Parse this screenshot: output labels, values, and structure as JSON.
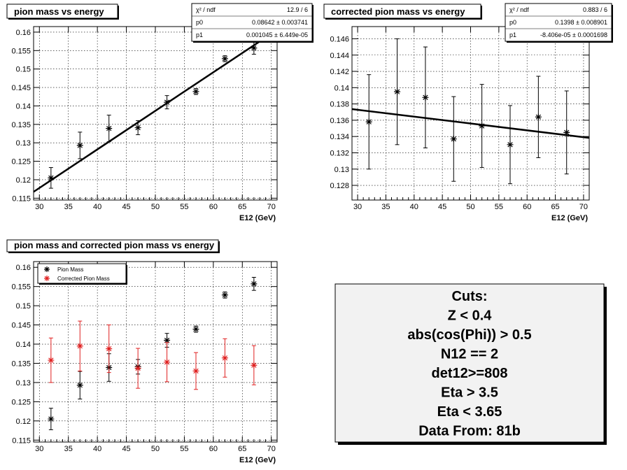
{
  "chart_data": [
    {
      "type": "scatter",
      "title": "pion mass vs energy",
      "xlabel": "E12 (GeV)",
      "xlim": [
        29,
        71
      ],
      "ylim": [
        0.1145,
        0.1615
      ],
      "xticks": [
        30,
        35,
        40,
        45,
        50,
        55,
        60,
        65,
        70
      ],
      "yticks": [
        0.115,
        0.12,
        0.125,
        0.13,
        0.135,
        0.14,
        0.145,
        0.15,
        0.155,
        0.16
      ],
      "series": [
        {
          "color": "#000000",
          "x": [
            32,
            37,
            42,
            47,
            52,
            57,
            62,
            67
          ],
          "y": [
            0.1205,
            0.1293,
            0.1339,
            0.1341,
            0.141,
            0.1439,
            0.1528,
            0.1557
          ],
          "err": [
            0.0028,
            0.0036,
            0.0036,
            0.0019,
            0.0018,
            0.0008,
            0.0008,
            0.0017
          ]
        }
      ],
      "fit": {
        "p0": 0.08642,
        "p1": 0.001045
      },
      "stats": [
        {
          "label": "χ² / ndf",
          "value": "12.9 / 6"
        },
        {
          "label": "p0",
          "value": "0.08642 ± 0.003741"
        },
        {
          "label": "p1",
          "value": "0.001045 ± 6.449e-05"
        }
      ]
    },
    {
      "type": "scatter",
      "title": "corrected pion mass vs energy",
      "xlabel": "E12 (GeV)",
      "xlim": [
        29,
        71
      ],
      "ylim": [
        0.1262,
        0.1475
      ],
      "xticks": [
        30,
        35,
        40,
        45,
        50,
        55,
        60,
        65,
        70
      ],
      "yticks": [
        0.128,
        0.13,
        0.132,
        0.134,
        0.136,
        0.138,
        0.14,
        0.142,
        0.144,
        0.146
      ],
      "series": [
        {
          "color": "#000000",
          "x": [
            32,
            37,
            42,
            47,
            52,
            57,
            62,
            67
          ],
          "y": [
            0.1358,
            0.1395,
            0.1388,
            0.1337,
            0.1353,
            0.133,
            0.1364,
            0.1345
          ],
          "err": [
            0.0058,
            0.0065,
            0.0062,
            0.0052,
            0.0051,
            0.0048,
            0.005,
            0.0051
          ]
        }
      ],
      "fit": {
        "p0": 0.1398,
        "p1": -8.406e-05
      },
      "stats": [
        {
          "label": "χ² / ndf",
          "value": "0.883 / 6"
        },
        {
          "label": "p0",
          "value": "0.1398 ± 0.008901"
        },
        {
          "label": "p1",
          "value": "-8.406e-05 ± 0.0001698"
        }
      ]
    },
    {
      "type": "scatter",
      "title": "pion mass and corrected pion mass vs energy",
      "xlabel": "E12 (GeV)",
      "xlim": [
        29,
        71
      ],
      "ylim": [
        0.1145,
        0.1615
      ],
      "xticks": [
        30,
        35,
        40,
        45,
        50,
        55,
        60,
        65,
        70
      ],
      "yticks": [
        0.115,
        0.12,
        0.125,
        0.13,
        0.135,
        0.14,
        0.145,
        0.15,
        0.155,
        0.16
      ],
      "legend_position": "top-left",
      "series": [
        {
          "name": "Pion Mass",
          "color": "#000000",
          "x": [
            32,
            37,
            42,
            47,
            52,
            57,
            62,
            67
          ],
          "y": [
            0.1205,
            0.1293,
            0.1339,
            0.1341,
            0.141,
            0.1439,
            0.1528,
            0.1557
          ],
          "err": [
            0.0028,
            0.0036,
            0.0036,
            0.0019,
            0.0018,
            0.0008,
            0.0008,
            0.0017
          ]
        },
        {
          "name": "Corrected Pion Mass",
          "color": "#e02020",
          "x": [
            32,
            37,
            42,
            47,
            52,
            57,
            62,
            67
          ],
          "y": [
            0.1358,
            0.1395,
            0.1388,
            0.1337,
            0.1353,
            0.133,
            0.1364,
            0.1345
          ],
          "err": [
            0.0058,
            0.0065,
            0.0062,
            0.0052,
            0.0051,
            0.0048,
            0.005,
            0.0051
          ]
        }
      ]
    }
  ],
  "cuts_panel": {
    "lines": [
      "Cuts:",
      "Z < 0.4",
      "abs(cos(Phi)) > 0.5",
      "N12 == 2",
      "det12>=808",
      "Eta > 3.5",
      "Eta < 3.65",
      "Data From: 81b"
    ]
  }
}
